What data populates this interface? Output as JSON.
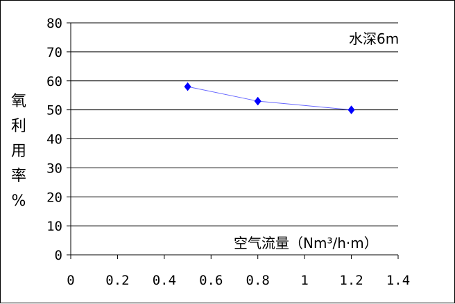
{
  "chart_data": {
    "type": "line",
    "title": "",
    "ylabel": "氧利用率%",
    "xlabel": "空气流量（Nm³/h·m）",
    "annotation": "水深6m",
    "xlim": [
      0,
      1.4
    ],
    "ylim": [
      0,
      80
    ],
    "x_ticks": [
      "0",
      "0.2",
      "0.4",
      "0.6",
      "0.8",
      "1",
      "1.2",
      "1.4"
    ],
    "y_ticks": [
      "0",
      "10",
      "20",
      "30",
      "40",
      "50",
      "60",
      "70",
      "80"
    ],
    "grid": "horizontal",
    "series": [
      {
        "x": [
          0.5,
          0.8,
          1.2
        ],
        "y": [
          58,
          53,
          50
        ]
      }
    ],
    "colors": {
      "series": "#0000ff",
      "line": "#6666ff"
    }
  }
}
